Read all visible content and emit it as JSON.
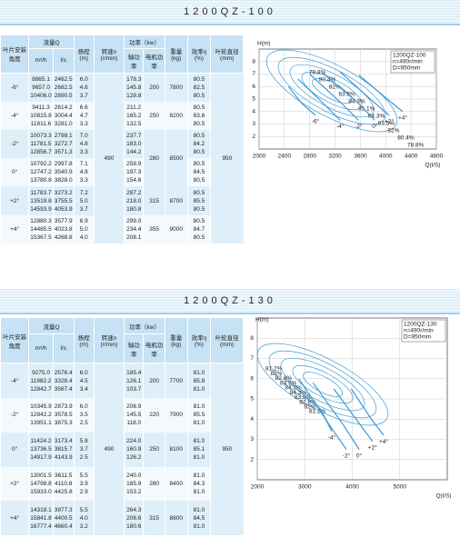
{
  "sections": [
    {
      "title": "1200QZ-100",
      "table": {
        "headers": {
          "angle": "叶片安装角度",
          "flow": "流量Q",
          "flow_m3h": "m³/h",
          "flow_ls": "l/s",
          "head": "扬程 (m)",
          "speed": "转速n (r/min)",
          "power": "功率（kw）",
          "shaft": "轴功率",
          "motor": "电机功率",
          "weight": "重量 (kg)",
          "efficiency": "效率η (%)",
          "diameter": "叶轮直径 (mm)"
        },
        "speed": "490",
        "diameter": "950",
        "groups": [
          {
            "angle": "-6°",
            "m3h": [
              "8865.1",
              "9657.0",
              "10406.0"
            ],
            "ls": [
              "2462.5",
              "2682.5",
              "2890.5"
            ],
            "head": [
              "6.0",
              "4.6",
              "3.7"
            ],
            "shaft": [
              "178.3",
              "145.8",
              "128.8"
            ],
            "efficiency": [
              "80.5",
              "82.5",
              "80.5"
            ]
          },
          {
            "angle": "-4°",
            "m3h": [
              "9411.3",
              "10815.8",
              "11811.6"
            ],
            "ls": [
              "2614.2",
              "3004.4",
              "3281.0"
            ],
            "head": [
              "6.6",
              "4.7",
              "3.3"
            ],
            "shaft": [
              "211.2",
              "165.2",
              "132.5"
            ],
            "efficiency": [
              "80.5",
              "83.6",
              "80.5"
            ]
          },
          {
            "angle": "-2°",
            "m3h": [
              "10073.3",
              "11781.5",
              "12856.7"
            ],
            "ls": [
              "2798.1",
              "3272.7",
              "3571.3"
            ],
            "head": [
              "7.0",
              "4.8",
              "3.3"
            ],
            "shaft": [
              "237.7",
              "183.0",
              "144.2"
            ],
            "efficiency": [
              "80.5",
              "84.2",
              "80.5"
            ]
          },
          {
            "angle": "0°",
            "m3h": [
              "10792.2",
              "12747.2",
              "13780.8"
            ],
            "ls": [
              "2997.8",
              "3540.9",
              "3828.0"
            ],
            "head": [
              "7.1",
              "4.8",
              "3.3"
            ],
            "shaft": [
              "258.9",
              "197.3",
              "154.6"
            ],
            "efficiency": [
              "80.5",
              "84.5",
              "80.5"
            ]
          },
          {
            "angle": "+2°",
            "m3h": [
              "11783.7",
              "13519.8",
              "14593.9"
            ],
            "ls": [
              "3273.2",
              "3755.5",
              "4053.9"
            ],
            "head": [
              "7.2",
              "5.0",
              "3.7"
            ],
            "shaft": [
              "287.2",
              "218.0",
              "180.8"
            ],
            "efficiency": [
              "80.5",
              "85.5",
              "80.5"
            ]
          },
          {
            "angle": "+4°",
            "m3h": [
              "12880.3",
              "14485.5",
              "15367.5"
            ],
            "ls": [
              "3577.9",
              "4023.8",
              "4268.8"
            ],
            "head": [
              "6.9",
              "5.0",
              "4.0"
            ],
            "shaft": [
              "299.0",
              "234.4",
              "208.1"
            ],
            "efficiency": [
              "80.5",
              "84.7",
              "80.5"
            ]
          }
        ],
        "motor": [
          "200",
          "250",
          "280",
          null,
          "315",
          "355"
        ],
        "weight": [
          "7800",
          "8200",
          "8500",
          null,
          "8700",
          "9000"
        ]
      },
      "chart": {
        "type": "line",
        "y_label": "H(m)",
        "x_label": "Q(l/S)",
        "info": [
          "1200QZ-100",
          "n=490r/min",
          "D=950mm"
        ],
        "xlim": [
          2000,
          4800
        ],
        "ylim": [
          1,
          9
        ],
        "xticks": [
          2000,
          2400,
          2800,
          3200,
          3600,
          4000,
          4400,
          4800
        ],
        "yticks": [
          2,
          3,
          4,
          5,
          6,
          7,
          8
        ],
        "color": "#3d9ad6",
        "series": [
          {
            "name": "-6°",
            "x": [
              2462.5,
              2682.5,
              2890.5
            ],
            "values": [
              6.0,
              4.6,
              3.7
            ]
          },
          {
            "name": "-4°",
            "x": [
              2614.2,
              3004.4,
              3281.0
            ],
            "values": [
              6.6,
              4.7,
              3.3
            ]
          },
          {
            "name": "-2°",
            "x": [
              2798.1,
              3272.7,
              3571.3
            ],
            "values": [
              7.0,
              4.8,
              3.3
            ]
          },
          {
            "name": "0°",
            "x": [
              2997.8,
              3540.9,
              3828.0
            ],
            "values": [
              7.1,
              4.8,
              3.3
            ]
          },
          {
            "name": "+2°",
            "x": [
              3273.2,
              3755.5,
              4053.9
            ],
            "values": [
              7.2,
              5.0,
              3.7
            ]
          },
          {
            "name": "+4°",
            "x": [
              3577.9,
              4023.8,
              4268.8
            ],
            "values": [
              6.9,
              5.0,
              4.0
            ]
          }
        ],
        "efficiency_labels": [
          "78.8%",
          "80.4%",
          "82%",
          "83.5%",
          "84.3%",
          "85.1%",
          "84.3%",
          "83.5%",
          "82%",
          "80.4%",
          "78.8%"
        ]
      }
    },
    {
      "title": "1200QZ-130",
      "table": {
        "headers": {
          "angle": "叶片安装角度",
          "flow": "流量Q",
          "flow_m3h": "m³/h",
          "flow_ls": "l/s",
          "head": "扬程 (m)",
          "speed": "转速n (r/min)",
          "power": "功率（kw）",
          "shaft": "轴功率",
          "motor": "电机功率",
          "weight": "重量 (kg)",
          "efficiency": "效率η (%)",
          "diameter": "叶轮直径 (mm)"
        },
        "speed": "490",
        "diameter": "950",
        "groups": [
          {
            "angle": "-4°",
            "m3h": [
              "9275.0",
              "11982.2",
              "12842.7"
            ],
            "ls": [
              "2576.4",
              "3328.4",
              "3567.4"
            ],
            "head": [
              "6.0",
              "4.5",
              "3.4"
            ],
            "shaft": [
              "185.4",
              "126.1",
              "103.7"
            ],
            "efficiency": [
              "81.0",
              "85.8",
              "81.0"
            ]
          },
          {
            "angle": "-2°",
            "m3h": [
              "10345.9",
              "12842.2",
              "13951.1"
            ],
            "ls": [
              "2873.9",
              "3578.5",
              "3875.3"
            ],
            "head": [
              "6.0",
              "3.5",
              "2.5"
            ],
            "shaft": [
              "206.9",
              "145.5",
              "118.0"
            ],
            "efficiency": [
              "81.0",
              "85.5",
              "81.0"
            ]
          },
          {
            "angle": "0°",
            "m3h": [
              "11424.2",
              "13736.5",
              "14917.9"
            ],
            "ls": [
              "3173.4",
              "3815.7",
              "4143.9"
            ],
            "head": [
              "5.8",
              "3.7",
              "2.5"
            ],
            "shaft": [
              "224.0",
              "160.9",
              "126.2"
            ],
            "efficiency": [
              "81.0",
              "85.1",
              "81.0"
            ]
          },
          {
            "angle": "+2°",
            "m3h": [
              "13001.5",
              "14798.8",
              "15933.0"
            ],
            "ls": [
              "3611.5",
              "4110.8",
              "4425.8"
            ],
            "head": [
              "5.5",
              "3.9",
              "2.9"
            ],
            "shaft": [
              "240.0",
              "185.9",
              "153.2"
            ],
            "efficiency": [
              "81.0",
              "84.3",
              "81.0"
            ]
          },
          {
            "angle": "+4°",
            "m3h": [
              "14318.1",
              "15841.8",
              "16777.4"
            ],
            "ls": [
              "3977.3",
              "4400.5",
              "4660.4"
            ],
            "head": [
              "5.5",
              "4.0",
              "3.2"
            ],
            "shaft": [
              "264.3",
              "208.6",
              "180.6"
            ],
            "efficiency": [
              "81.0",
              "84.5",
              "81.0"
            ]
          }
        ],
        "motor": [
          "200",
          "220",
          "250",
          "280",
          "315"
        ],
        "weight": [
          "7700",
          "7900",
          "8100",
          "8400",
          "8800"
        ]
      },
      "chart": {
        "type": "line",
        "y_label": "H(m)",
        "x_label": "Q(l/S)",
        "info": [
          "1200QZ-130",
          "n=490r/min",
          "D=950mm"
        ],
        "xlim": [
          2000,
          6000
        ],
        "ylim": [
          1,
          9
        ],
        "xticks": [
          2000,
          3000,
          4000,
          5000
        ],
        "yticks": [
          2,
          3,
          4,
          5,
          6,
          7,
          8
        ],
        "color": "#3d9ad6",
        "series": [
          {
            "name": "-4°",
            "x": [
              2576.4,
              3328.4,
              3567.4
            ],
            "values": [
              6.0,
              4.5,
              3.4
            ]
          },
          {
            "name": "-2°",
            "x": [
              2873.9,
              3578.5,
              3875.3
            ],
            "values": [
              6.0,
              3.5,
              2.5
            ]
          },
          {
            "name": "0°",
            "x": [
              3173.4,
              3815.7,
              4143.9
            ],
            "values": [
              5.8,
              3.7,
              2.5
            ]
          },
          {
            "name": "+2°",
            "x": [
              3611.5,
              4110.8,
              4425.8
            ],
            "values": [
              5.5,
              3.9,
              2.9
            ]
          },
          {
            "name": "+4°",
            "x": [
              3977.3,
              4400.5,
              4660.4
            ],
            "values": [
              5.5,
              4.0,
              3.2
            ]
          }
        ],
        "efficiency_labels": [
          "81.2%",
          "82%",
          "82.8%",
          "83.5%",
          "84.3%",
          "84.3%",
          "83.5%",
          "82.8%",
          "82%",
          "81.2%"
        ]
      }
    }
  ]
}
